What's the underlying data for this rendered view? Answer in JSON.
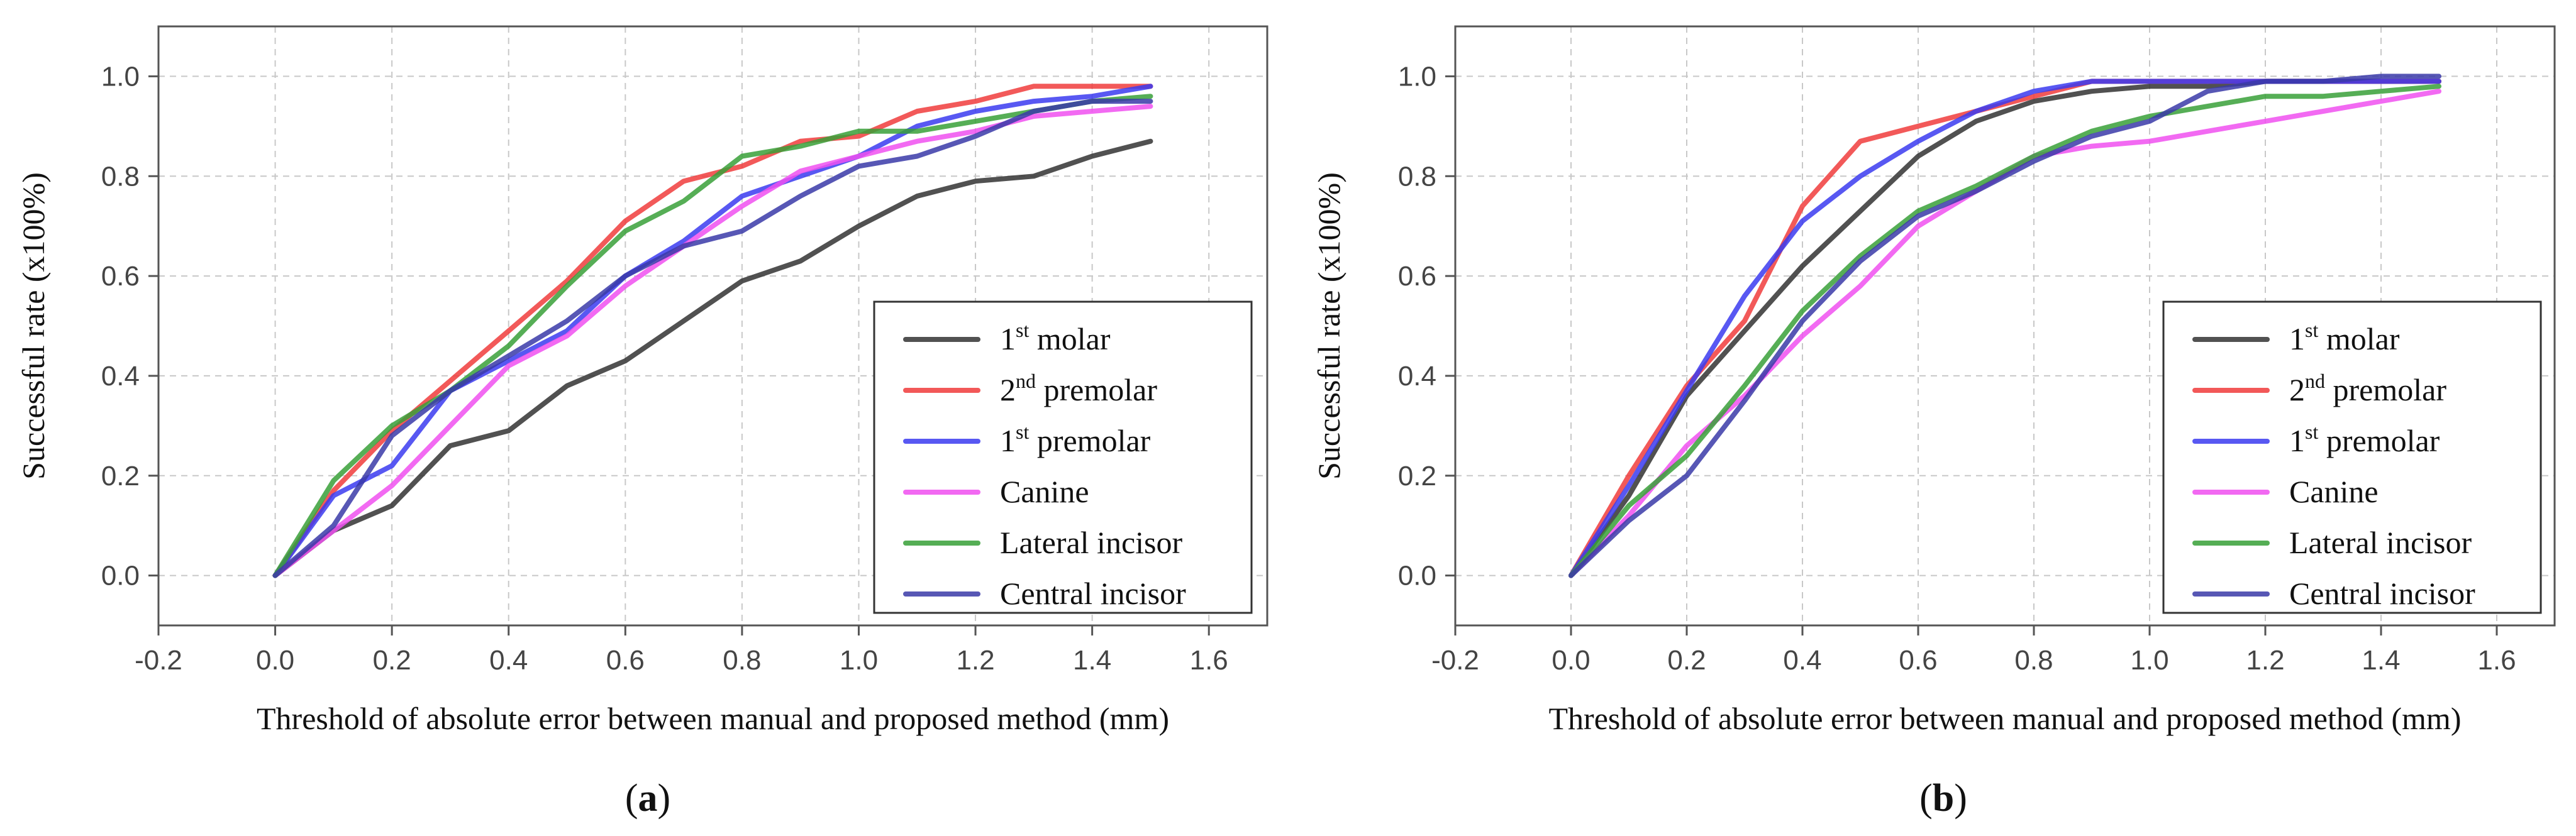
{
  "chart_data": [
    {
      "type": "line",
      "panel_label": "a",
      "xlabel": "Threshold of absolute error between manual and proposed method (mm)",
      "ylabel": "Successful rate (x100%)",
      "xlim": [
        -0.2,
        1.7
      ],
      "ylim": [
        -0.1,
        1.1
      ],
      "xticks": [
        "-0.2",
        "0.0",
        "0.2",
        "0.4",
        "0.6",
        "0.8",
        "1.0",
        "1.2",
        "1.4",
        "1.6"
      ],
      "xtick_values": [
        -0.2,
        0.0,
        0.2,
        0.4,
        0.6,
        0.8,
        1.0,
        1.2,
        1.4,
        1.6
      ],
      "yticks": [
        "0.0",
        "0.2",
        "0.4",
        "0.6",
        "0.8",
        "1.0"
      ],
      "ytick_values": [
        0.0,
        0.2,
        0.4,
        0.6,
        0.8,
        1.0
      ],
      "grid": true,
      "legend_position": "bottom-right",
      "x": [
        0.0,
        0.1,
        0.2,
        0.3,
        0.4,
        0.5,
        0.6,
        0.7,
        0.8,
        0.9,
        1.0,
        1.1,
        1.2,
        1.3,
        1.4,
        1.5
      ],
      "series": [
        {
          "name": "1st molar",
          "base": "1",
          "sup": "st",
          "rest": " molar",
          "color": "#333333",
          "values": [
            0.0,
            0.09,
            0.14,
            0.26,
            0.29,
            0.38,
            0.43,
            0.51,
            0.59,
            0.63,
            0.7,
            0.76,
            0.79,
            0.8,
            0.84,
            0.87
          ]
        },
        {
          "name": "2nd premolar",
          "base": "2",
          "sup": "nd",
          "rest": " premolar",
          "color": "#f03c3c",
          "values": [
            0.0,
            0.17,
            0.29,
            0.39,
            0.49,
            0.59,
            0.71,
            0.79,
            0.82,
            0.87,
            0.88,
            0.93,
            0.95,
            0.98,
            0.98,
            0.98
          ]
        },
        {
          "name": "1st premolar",
          "base": "1",
          "sup": "st",
          "rest": " premolar",
          "color": "#3b3bf0",
          "values": [
            0.0,
            0.16,
            0.22,
            0.37,
            0.43,
            0.49,
            0.6,
            0.67,
            0.76,
            0.8,
            0.84,
            0.9,
            0.93,
            0.95,
            0.96,
            0.98
          ]
        },
        {
          "name": "Canine",
          "base": "Canine",
          "sup": "",
          "rest": "",
          "color": "#f050f0",
          "values": [
            0.0,
            0.09,
            0.18,
            0.3,
            0.42,
            0.48,
            0.58,
            0.66,
            0.74,
            0.81,
            0.84,
            0.87,
            0.89,
            0.92,
            0.93,
            0.94
          ]
        },
        {
          "name": "Lateral incisor",
          "base": "Lateral incisor",
          "sup": "",
          "rest": "",
          "color": "#38a038",
          "values": [
            0.0,
            0.19,
            0.3,
            0.37,
            0.46,
            0.58,
            0.69,
            0.75,
            0.84,
            0.86,
            0.89,
            0.89,
            0.91,
            0.93,
            0.95,
            0.96
          ]
        },
        {
          "name": "Central incisor",
          "base": "Central incisor",
          "sup": "",
          "rest": "",
          "color": "#3a3aa8",
          "values": [
            0.0,
            0.1,
            0.28,
            0.37,
            0.44,
            0.51,
            0.6,
            0.66,
            0.69,
            0.76,
            0.82,
            0.84,
            0.88,
            0.93,
            0.95,
            0.95
          ]
        }
      ]
    },
    {
      "type": "line",
      "panel_label": "b",
      "xlabel": "Threshold of absolute error between manual and proposed method (mm)",
      "ylabel": "Successful rate (x100%)",
      "xlim": [
        -0.2,
        1.7
      ],
      "ylim": [
        -0.1,
        1.1
      ],
      "xticks": [
        "-0.2",
        "0.0",
        "0.2",
        "0.4",
        "0.6",
        "0.8",
        "1.0",
        "1.2",
        "1.4",
        "1.6"
      ],
      "xtick_values": [
        -0.2,
        0.0,
        0.2,
        0.4,
        0.6,
        0.8,
        1.0,
        1.2,
        1.4,
        1.6
      ],
      "yticks": [
        "0.0",
        "0.2",
        "0.4",
        "0.6",
        "0.8",
        "1.0"
      ],
      "ytick_values": [
        0.0,
        0.2,
        0.4,
        0.6,
        0.8,
        1.0
      ],
      "grid": true,
      "legend_position": "bottom-right",
      "x": [
        0.0,
        0.1,
        0.2,
        0.3,
        0.4,
        0.5,
        0.6,
        0.7,
        0.8,
        0.9,
        1.0,
        1.1,
        1.2,
        1.3,
        1.4,
        1.5
      ],
      "series": [
        {
          "name": "1st molar",
          "base": "1",
          "sup": "st",
          "rest": " molar",
          "color": "#333333",
          "values": [
            0.0,
            0.16,
            0.36,
            0.49,
            0.62,
            0.73,
            0.84,
            0.91,
            0.95,
            0.97,
            0.98,
            0.98,
            0.99,
            0.99,
            0.99,
            0.99
          ]
        },
        {
          "name": "2nd premolar",
          "base": "2",
          "sup": "nd",
          "rest": " premolar",
          "color": "#f03c3c",
          "values": [
            0.0,
            0.2,
            0.38,
            0.51,
            0.74,
            0.87,
            0.9,
            0.93,
            0.96,
            0.99,
            0.99,
            0.99,
            0.99,
            0.99,
            0.99,
            0.99
          ]
        },
        {
          "name": "1st premolar",
          "base": "1",
          "sup": "st",
          "rest": " premolar",
          "color": "#3b3bf0",
          "values": [
            0.0,
            0.18,
            0.37,
            0.56,
            0.71,
            0.8,
            0.87,
            0.93,
            0.97,
            0.99,
            0.99,
            0.99,
            0.99,
            0.99,
            0.99,
            0.99
          ]
        },
        {
          "name": "Canine",
          "base": "Canine",
          "sup": "",
          "rest": "",
          "color": "#f050f0",
          "values": [
            0.0,
            0.12,
            0.26,
            0.36,
            0.48,
            0.58,
            0.7,
            0.77,
            0.84,
            0.86,
            0.87,
            0.89,
            0.91,
            0.93,
            0.95,
            0.97
          ]
        },
        {
          "name": "Lateral incisor",
          "base": "Lateral incisor",
          "sup": "",
          "rest": "",
          "color": "#38a038",
          "values": [
            0.0,
            0.14,
            0.24,
            0.38,
            0.53,
            0.64,
            0.73,
            0.78,
            0.84,
            0.89,
            0.92,
            0.94,
            0.96,
            0.96,
            0.97,
            0.98
          ]
        },
        {
          "name": "Central incisor",
          "base": "Central incisor",
          "sup": "",
          "rest": "",
          "color": "#3a3aa8",
          "values": [
            0.0,
            0.11,
            0.2,
            0.35,
            0.51,
            0.63,
            0.72,
            0.77,
            0.83,
            0.88,
            0.91,
            0.97,
            0.99,
            0.99,
            1.0,
            1.0
          ]
        }
      ]
    }
  ]
}
